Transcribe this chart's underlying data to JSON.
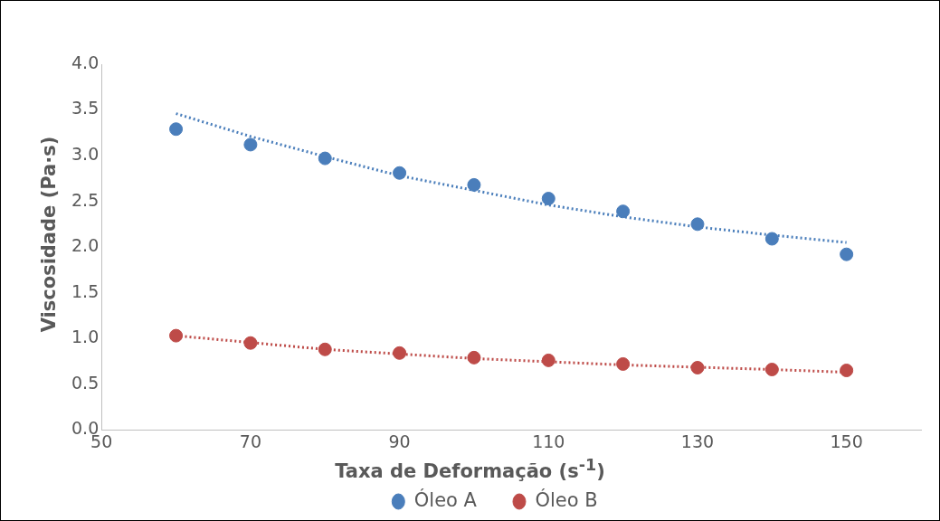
{
  "chart_data": {
    "type": "scatter",
    "xlabel": "Taxa de Deformação (s$^{-1}$)",
    "ylabel": "Viscosidade (Pa·s)",
    "x": [
      60,
      70,
      80,
      90,
      100,
      110,
      120,
      130,
      140,
      150
    ],
    "series": [
      {
        "name": "Óleo A",
        "color": "#4a7ebb",
        "values": [
          3.29,
          3.12,
          2.97,
          2.81,
          2.68,
          2.53,
          2.39,
          2.25,
          2.09,
          1.92
        ]
      },
      {
        "name": "Óleo B",
        "color": "#be4b48",
        "values": [
          1.03,
          0.95,
          0.88,
          0.84,
          0.79,
          0.76,
          0.72,
          0.68,
          0.66,
          0.65
        ]
      },
      {
        "type": "line",
        "color": "#4a7ebb",
        "line_style": "dotted",
        "marker": "none",
        "x": [
          60,
          70,
          80,
          90,
          100,
          110,
          120,
          130,
          140,
          150
        ],
        "values": [
          3.46,
          3.21,
          2.99,
          2.78,
          2.62,
          2.46,
          2.33,
          2.22,
          2.13,
          2.05
        ]
      },
      {
        "type": "line",
        "color": "#be4b48",
        "line_style": "dotted",
        "marker": "none",
        "x": [
          60,
          80,
          100,
          120,
          140,
          150
        ],
        "values": [
          1.03,
          0.88,
          0.78,
          0.71,
          0.66,
          0.63
        ]
      }
    ],
    "marker": "circle",
    "xlim": [
      50,
      160
    ],
    "xticks": [
      50,
      70,
      90,
      110,
      130,
      150
    ],
    "ylim": [
      0,
      4
    ],
    "yticks": [
      {
        "value": 0,
        "label": "0.0"
      },
      {
        "value": 0.5,
        "label": "0.5"
      },
      {
        "value": 1,
        "label": "1.0"
      },
      {
        "value": 1.5,
        "label": "1.5"
      },
      {
        "value": 2,
        "label": "2.0"
      },
      {
        "value": 2.5,
        "label": "2.5"
      },
      {
        "value": 3,
        "label": "3.0"
      },
      {
        "value": 3.5,
        "label": "3.5"
      },
      {
        "value": 4,
        "label": "4.0"
      }
    ],
    "grid": false,
    "legend": "bottom"
  }
}
